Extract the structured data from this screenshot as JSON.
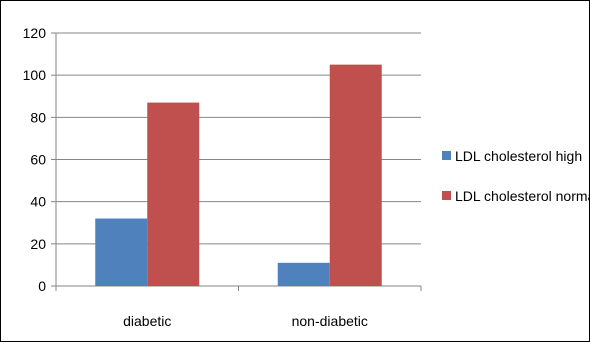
{
  "chart_data": {
    "type": "bar",
    "categories": [
      "diabetic",
      "non-diabetic"
    ],
    "series": [
      {
        "name": "LDL cholesterol high",
        "values": [
          32,
          11
        ],
        "color": "#4F81BD"
      },
      {
        "name": "LDL cholesterol normal",
        "values": [
          87,
          105
        ],
        "color": "#C0504D"
      }
    ],
    "ylim": [
      0,
      120
    ],
    "yticks": [
      0,
      20,
      40,
      60,
      80,
      100,
      120
    ],
    "grid": true,
    "legend_position": "right"
  }
}
